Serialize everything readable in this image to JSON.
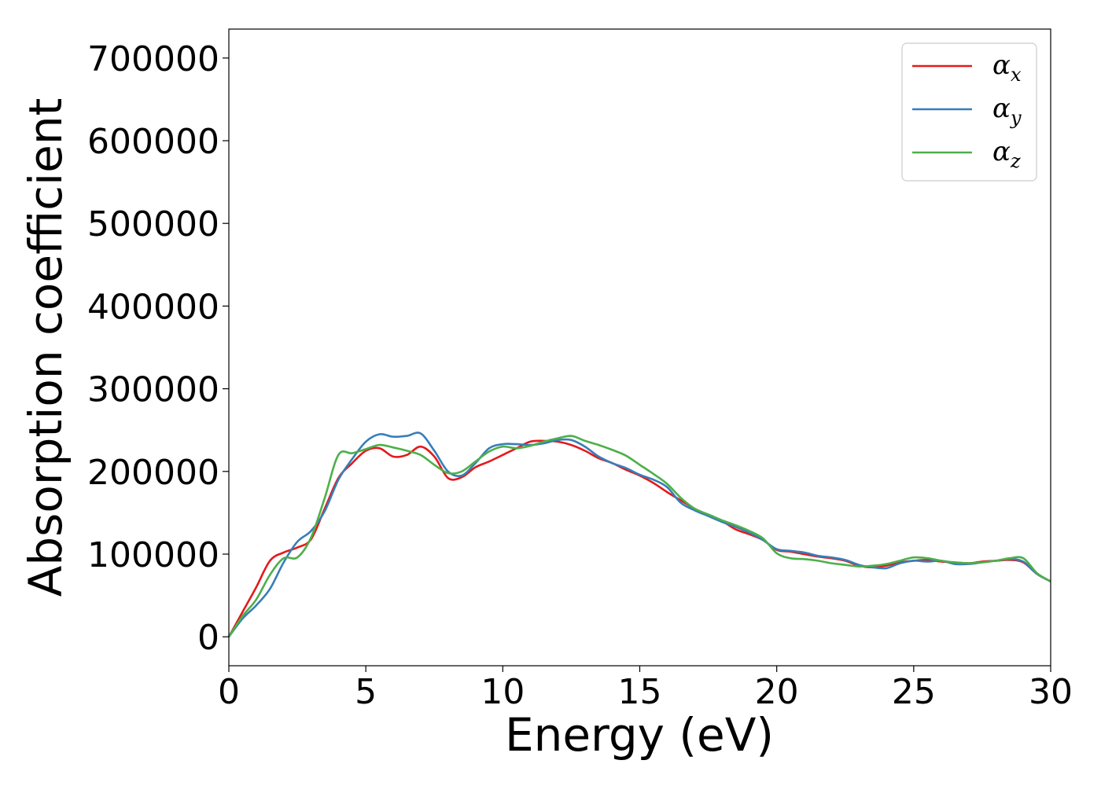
{
  "chart_data": {
    "type": "line",
    "xlabel": "Energy (eV)",
    "ylabel": "Absorption coefficient",
    "xlim": [
      0,
      30
    ],
    "ylim": [
      -35000,
      735000
    ],
    "xticks": [
      "0",
      "5",
      "10",
      "15",
      "20",
      "25",
      "30"
    ],
    "yticks": [
      "0",
      "100000",
      "200000",
      "300000",
      "400000",
      "500000",
      "600000",
      "700000"
    ],
    "grid": false,
    "legend_position": "top-right",
    "x": [
      0,
      0.5,
      1,
      1.5,
      2,
      2.5,
      3,
      3.5,
      4,
      4.5,
      5,
      5.5,
      6,
      6.5,
      7,
      7.5,
      8,
      8.5,
      9,
      9.5,
      10,
      10.5,
      11,
      11.5,
      12,
      12.5,
      13,
      13.5,
      14,
      14.5,
      15,
      15.5,
      16,
      16.5,
      17,
      17.5,
      18,
      18.5,
      19,
      19.5,
      20,
      20.5,
      21,
      21.5,
      22,
      22.5,
      23,
      23.5,
      24,
      24.5,
      25,
      25.5,
      26,
      26.5,
      27,
      27.5,
      28,
      28.5,
      29,
      29.5,
      30
    ],
    "series": [
      {
        "base": "α",
        "sub": "x",
        "color": "#e41a1c",
        "values": [
          0,
          30000,
          60000,
          92000,
          102000,
          108000,
          118000,
          155000,
          192000,
          210000,
          225000,
          228000,
          218000,
          220000,
          230000,
          218000,
          192000,
          193000,
          205000,
          212000,
          220000,
          228000,
          236000,
          237000,
          236000,
          232000,
          225000,
          216000,
          210000,
          202000,
          195000,
          186000,
          175000,
          165000,
          155000,
          147000,
          140000,
          130000,
          124000,
          117000,
          105000,
          103000,
          100000,
          97000,
          95000,
          92000,
          86000,
          84000,
          86000,
          90000,
          92000,
          93000,
          91000,
          90000,
          89000,
          91000,
          92000,
          93000,
          90000,
          76000,
          67000
        ]
      },
      {
        "base": "α",
        "sub": "y",
        "color": "#377eb8",
        "values": [
          0,
          22000,
          38000,
          58000,
          90000,
          115000,
          128000,
          152000,
          190000,
          215000,
          236000,
          245000,
          242000,
          243000,
          246000,
          225000,
          200000,
          195000,
          210000,
          228000,
          233000,
          233000,
          232000,
          234000,
          238000,
          238000,
          230000,
          218000,
          210000,
          204000,
          196000,
          190000,
          181000,
          162000,
          153000,
          146000,
          139000,
          133000,
          126000,
          117000,
          106000,
          104000,
          102000,
          98000,
          96000,
          93000,
          87000,
          84000,
          83000,
          89000,
          92000,
          91000,
          92000,
          88000,
          88000,
          90000,
          92000,
          94000,
          91000,
          76000,
          67000
        ]
      },
      {
        "base": "α",
        "sub": "z",
        "color": "#4daf4a",
        "values": [
          0,
          25000,
          45000,
          75000,
          95000,
          96000,
          120000,
          168000,
          220000,
          222000,
          227000,
          232000,
          229000,
          225000,
          220000,
          208000,
          198000,
          200000,
          212000,
          224000,
          230000,
          228000,
          231000,
          236000,
          240000,
          243000,
          237000,
          232000,
          226000,
          219000,
          208000,
          197000,
          185000,
          168000,
          155000,
          148000,
          141000,
          135000,
          128000,
          119000,
          101000,
          95000,
          94000,
          92000,
          89000,
          87000,
          85000,
          86000,
          88000,
          92000,
          96000,
          95000,
          92000,
          90000,
          89000,
          90000,
          92000,
          95000,
          95000,
          77000,
          67000
        ]
      }
    ]
  }
}
